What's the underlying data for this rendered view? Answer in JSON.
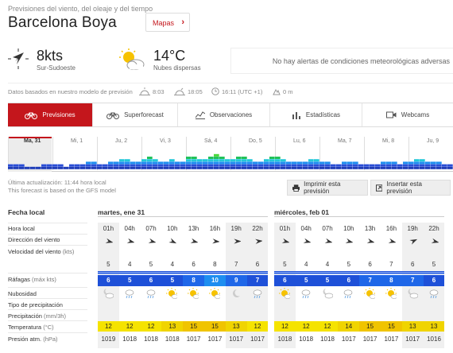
{
  "header": {
    "breadcrumb": "Previsiones del viento, del oleaje y del tiempo",
    "title": "Barcelona Boya",
    "maps_button": "Mapas"
  },
  "current": {
    "wind_speed": "8kts",
    "wind_direction": "Sur-Sudoeste",
    "temperature": "14°C",
    "sky": "Nubes dispersas",
    "alert": "No hay alertas de condiciones meteorológicas adversas"
  },
  "meta": {
    "model_note": "Datos basados en nuestro modelo de previsión",
    "sunrise": "8:03",
    "sunset": "18:05",
    "local_time": "16:11 (UTC +1)",
    "elevation": "0 m"
  },
  "tabs": [
    {
      "label": "Previsiones",
      "icon": "bicycle-icon"
    },
    {
      "label": "Superforecast",
      "icon": "bicycle-icon"
    },
    {
      "label": "Observaciones",
      "icon": "chart-line-icon"
    },
    {
      "label": "Estadísticas",
      "icon": "bar-chart-icon"
    },
    {
      "label": "Webcams",
      "icon": "video-camera-icon"
    }
  ],
  "timeline_days": [
    "Ma, 31",
    "Mi, 1",
    "Ju, 2",
    "Vi, 3",
    "Sá, 4",
    "Do, 5",
    "Lu, 6",
    "Ma, 7",
    "Mi, 8",
    "Ju, 9"
  ],
  "update": {
    "last_update": "Última actualización: 11:44 hora local",
    "model_line": "This forecast is based on the GFS model",
    "print_button": "Imprimir esta previsión",
    "embed_button": "Insertar esta previsión"
  },
  "row_labels": {
    "local_date": "Fecha local",
    "hour": "Hora local",
    "wind_dir": "Dirección del viento",
    "wind_speed": "Velocidad del viento",
    "wind_unit": "(kts)",
    "gusts": "Ráfagas",
    "gusts_unit": "(máx kts)",
    "clouds": "Nubosidad",
    "precip_type": "Tipo de precipitación",
    "precip": "Precipitación",
    "precip_unit": "(mm/3h)",
    "temp": "Temperatura",
    "temp_unit": "(°C)",
    "pressure": "Presión atm.",
    "pressure_unit": "(hPa)"
  },
  "days": [
    {
      "label": "martes, ene 31",
      "hours": [
        "01h",
        "04h",
        "07h",
        "10h",
        "13h",
        "16h",
        "19h",
        "22h"
      ],
      "wind_dir_deg": [
        60,
        60,
        60,
        70,
        60,
        50,
        45,
        40
      ],
      "wind_speed": [
        "5",
        "4",
        "5",
        "4",
        "6",
        "8",
        "7",
        "6"
      ],
      "gusts": [
        "6",
        "5",
        "6",
        "5",
        "8",
        "10",
        "9",
        "7"
      ],
      "gust_colors": [
        "#1e50d8",
        "#1e50d8",
        "#1e50d8",
        "#1e50d8",
        "#1f67e8",
        "#1e8ef0",
        "#1f67e8",
        "#1e50d8"
      ],
      "clouds": [
        "cloud-moon-icon",
        "rain-cloud-icon",
        "rain-cloud-icon",
        "sun-icon",
        "sun-icon",
        "sun-icon",
        "moon-icon",
        "rain-cloud-icon"
      ],
      "temps": [
        "12",
        "12",
        "12",
        "13",
        "15",
        "15",
        "13",
        "12"
      ],
      "temp_colors": [
        "#f5e300",
        "#f5e300",
        "#f5e300",
        "#f0d400",
        "#f0c400",
        "#f0c400",
        "#f0d400",
        "#f5e300"
      ],
      "pressure": [
        "1019",
        "1018",
        "1018",
        "1018",
        "1017",
        "1017",
        "1017",
        "1017"
      ]
    },
    {
      "label": "miércoles, feb 01",
      "hours": [
        "01h",
        "04h",
        "07h",
        "10h",
        "13h",
        "16h",
        "19h",
        "22h"
      ],
      "wind_dir_deg": [
        60,
        60,
        60,
        60,
        60,
        60,
        20,
        60
      ],
      "wind_speed": [
        "5",
        "4",
        "4",
        "5",
        "6",
        "7",
        "6",
        "5"
      ],
      "gusts": [
        "6",
        "5",
        "5",
        "6",
        "7",
        "8",
        "7",
        "6"
      ],
      "gust_colors": [
        "#1e50d8",
        "#1e50d8",
        "#1e50d8",
        "#1e50d8",
        "#1f67e8",
        "#1f67e8",
        "#1f67e8",
        "#1e50d8"
      ],
      "clouds": [
        "sun-icon",
        "rain-cloud-icon",
        "cloud-moon-icon",
        "rain-cloud-icon",
        "sun-icon",
        "sun-icon",
        "cloud-moon-icon",
        "rain-cloud-icon"
      ],
      "temps": [
        "12",
        "12",
        "12",
        "14",
        "15",
        "15",
        "13",
        "13"
      ],
      "temp_colors": [
        "#f5e300",
        "#f5e300",
        "#f5e300",
        "#f0d400",
        "#f0c400",
        "#f0c400",
        "#f0d400",
        "#f0d400"
      ],
      "pressure": [
        "1018",
        "1018",
        "1018",
        "1017",
        "1017",
        "1017",
        "1017",
        "1016"
      ]
    }
  ],
  "colors": {
    "brand": "#c4161c",
    "gust_low": "#1e50d8",
    "temp_mild": "#f5e300"
  }
}
